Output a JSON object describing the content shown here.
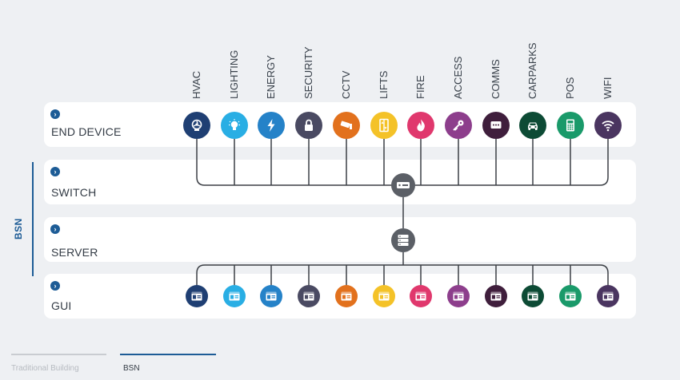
{
  "categories": [
    {
      "label": "HVAC",
      "color": "#1f3f73",
      "icon": "fan-icon"
    },
    {
      "label": "LIGHTING",
      "color": "#29aee4",
      "icon": "bulb-icon"
    },
    {
      "label": "ENERGY",
      "color": "#2582c8",
      "icon": "bolt-icon"
    },
    {
      "label": "SECURITY",
      "color": "#4a4a62",
      "icon": "lock-icon"
    },
    {
      "label": "CCTV",
      "color": "#e2711d",
      "icon": "camera-icon"
    },
    {
      "label": "LIFTS",
      "color": "#f4c228",
      "icon": "elevator-icon"
    },
    {
      "label": "FIRE",
      "color": "#e0386d",
      "icon": "flame-icon"
    },
    {
      "label": "ACCESS",
      "color": "#8d3e8c",
      "icon": "key-icon"
    },
    {
      "label": "COMMS",
      "color": "#3f1e3c",
      "icon": "chat-icon"
    },
    {
      "label": "CARPARKS",
      "color": "#0d4b35",
      "icon": "car-icon"
    },
    {
      "label": "POS",
      "color": "#1a9a6a",
      "icon": "terminal-icon"
    },
    {
      "label": "WIFI",
      "color": "#4a3560",
      "icon": "wifi-icon"
    }
  ],
  "rows": [
    {
      "label": "END DEVICE"
    },
    {
      "label": "SWITCH"
    },
    {
      "label": "SERVER"
    },
    {
      "label": "GUI"
    }
  ],
  "bsn_label": "BSN",
  "tabs": [
    {
      "label": "Traditional Building",
      "active": false
    },
    {
      "label": "BSN",
      "active": true
    }
  ],
  "colors": {
    "accent": "#1d5c96",
    "hub": "#5b5f66",
    "line": "#3b3f45"
  }
}
